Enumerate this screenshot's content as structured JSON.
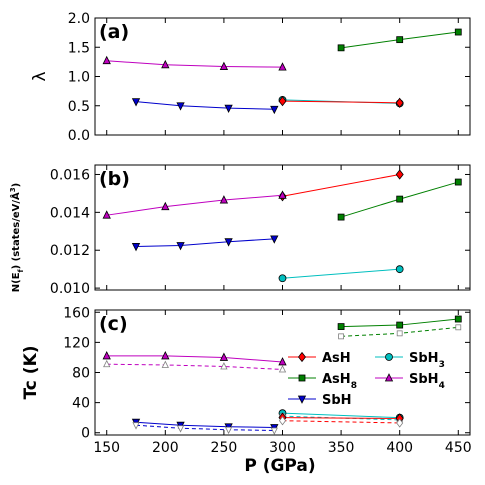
{
  "figure": {
    "xlabel": "P (GPa)",
    "x_ticks": [
      "150",
      "200",
      "250",
      "300",
      "350",
      "400",
      "450"
    ]
  },
  "colors": {
    "AsH": "#ff0000",
    "AsH8": "#008000",
    "SbH": "#0000cc",
    "SbH3": "#00bfbf",
    "SbH4": "#bf00bf",
    "open_marker": "#7f7f7f"
  },
  "legend": {
    "entries": [
      {
        "key": "AsH",
        "label": "AsH",
        "marker": "diamond"
      },
      {
        "key": "AsH8",
        "label": "AsH",
        "sub": "8",
        "marker": "square"
      },
      {
        "key": "SbH",
        "label": "SbH",
        "marker": "triangle-down"
      },
      {
        "key": "SbH3",
        "label": "SbH",
        "sub": "3",
        "marker": "circle"
      },
      {
        "key": "SbH4",
        "label": "SbH",
        "sub": "4",
        "marker": "triangle-up"
      }
    ]
  },
  "chart_data": [
    {
      "type": "line",
      "panel": "(a)",
      "ylabel": "λ",
      "ylim": [
        0,
        2
      ],
      "y_ticks": [
        "0.0",
        "0.5",
        "1.0",
        "1.5",
        "2.0"
      ],
      "series": [
        {
          "key": "AsH8",
          "x": [
            350,
            400,
            450
          ],
          "y": [
            1.49,
            1.63,
            1.76
          ],
          "marker": "square"
        },
        {
          "key": "SbH4",
          "x": [
            150,
            200,
            250,
            300
          ],
          "y": [
            1.27,
            1.2,
            1.17,
            1.16
          ],
          "marker": "triangle-up"
        },
        {
          "key": "SbH",
          "x": [
            175,
            213,
            254,
            293
          ],
          "y": [
            0.57,
            0.5,
            0.46,
            0.44
          ],
          "marker": "triangle-down"
        },
        {
          "key": "SbH3",
          "x": [
            300,
            400
          ],
          "y": [
            0.6,
            0.54
          ],
          "marker": "circle"
        },
        {
          "key": "AsH",
          "x": [
            300,
            400
          ],
          "y": [
            0.58,
            0.55
          ],
          "marker": "diamond"
        }
      ]
    },
    {
      "type": "line",
      "panel": "(b)",
      "ylabel": "N(E",
      "ylabel_sub": "f",
      "ylabel_rest": ") (states/eV/Å",
      "ylabel_sup": "3",
      "ylabel_end": ")",
      "ylim": [
        0.0099,
        0.0165
      ],
      "y_ticks": [
        "0.010",
        "0.012",
        "0.014",
        "0.016"
      ],
      "y_tick_values": [
        0.01,
        0.012,
        0.014,
        0.016
      ],
      "series": [
        {
          "key": "AsH",
          "x": [
            300,
            400
          ],
          "y": [
            0.01485,
            0.016
          ],
          "marker": "diamond"
        },
        {
          "key": "AsH8",
          "x": [
            350,
            400,
            450
          ],
          "y": [
            0.01375,
            0.0147,
            0.0156
          ],
          "marker": "square"
        },
        {
          "key": "SbH4",
          "x": [
            150,
            200,
            250,
            300
          ],
          "y": [
            0.01385,
            0.0143,
            0.01465,
            0.0149
          ],
          "marker": "triangle-up"
        },
        {
          "key": "SbH",
          "x": [
            175,
            213,
            254,
            293
          ],
          "y": [
            0.0122,
            0.01225,
            0.01245,
            0.0126
          ],
          "marker": "triangle-down"
        },
        {
          "key": "SbH3",
          "x": [
            300,
            400
          ],
          "y": [
            0.01052,
            0.011
          ],
          "marker": "circle"
        }
      ]
    },
    {
      "type": "line",
      "panel": "(c)",
      "ylabel": "Tc (K)",
      "ylim": [
        -3,
        163
      ],
      "y_ticks": [
        "0",
        "40",
        "80",
        "120",
        "160"
      ],
      "y_tick_values": [
        0,
        40,
        80,
        120,
        160
      ],
      "series": [
        {
          "key": "AsH8",
          "x": [
            350,
            400,
            450
          ],
          "y": [
            141,
            143,
            151
          ],
          "marker": "square"
        },
        {
          "key": "AsH8",
          "dashed": true,
          "open": true,
          "x": [
            350,
            400,
            450
          ],
          "y": [
            128,
            132,
            140
          ],
          "marker": "square"
        },
        {
          "key": "SbH4",
          "x": [
            150,
            200,
            250,
            300
          ],
          "y": [
            102,
            102,
            100,
            94
          ],
          "marker": "triangle-up"
        },
        {
          "key": "SbH4",
          "dashed": true,
          "open": true,
          "x": [
            150,
            200,
            250,
            300
          ],
          "y": [
            91,
            90,
            88,
            84
          ],
          "marker": "triangle-up"
        },
        {
          "key": "SbH",
          "x": [
            175,
            213,
            254,
            293
          ],
          "y": [
            14,
            10,
            8,
            7
          ],
          "marker": "triangle-down"
        },
        {
          "key": "SbH",
          "dashed": true,
          "open": true,
          "x": [
            175,
            213,
            254,
            293
          ],
          "y": [
            10,
            6,
            4,
            3
          ],
          "marker": "triangle-down"
        },
        {
          "key": "SbH3",
          "x": [
            300,
            400
          ],
          "y": [
            26,
            20
          ],
          "marker": "circle"
        },
        {
          "key": "SbH3",
          "dashed": true,
          "open": true,
          "x": [
            300,
            400
          ],
          "y": [
            22,
            17
          ],
          "marker": "circle"
        },
        {
          "key": "AsH",
          "x": [
            300,
            400
          ],
          "y": [
            20,
            19
          ],
          "marker": "diamond"
        },
        {
          "key": "AsH",
          "dashed": true,
          "open": true,
          "x": [
            300,
            400
          ],
          "y": [
            16,
            13
          ],
          "marker": "diamond"
        }
      ]
    }
  ]
}
